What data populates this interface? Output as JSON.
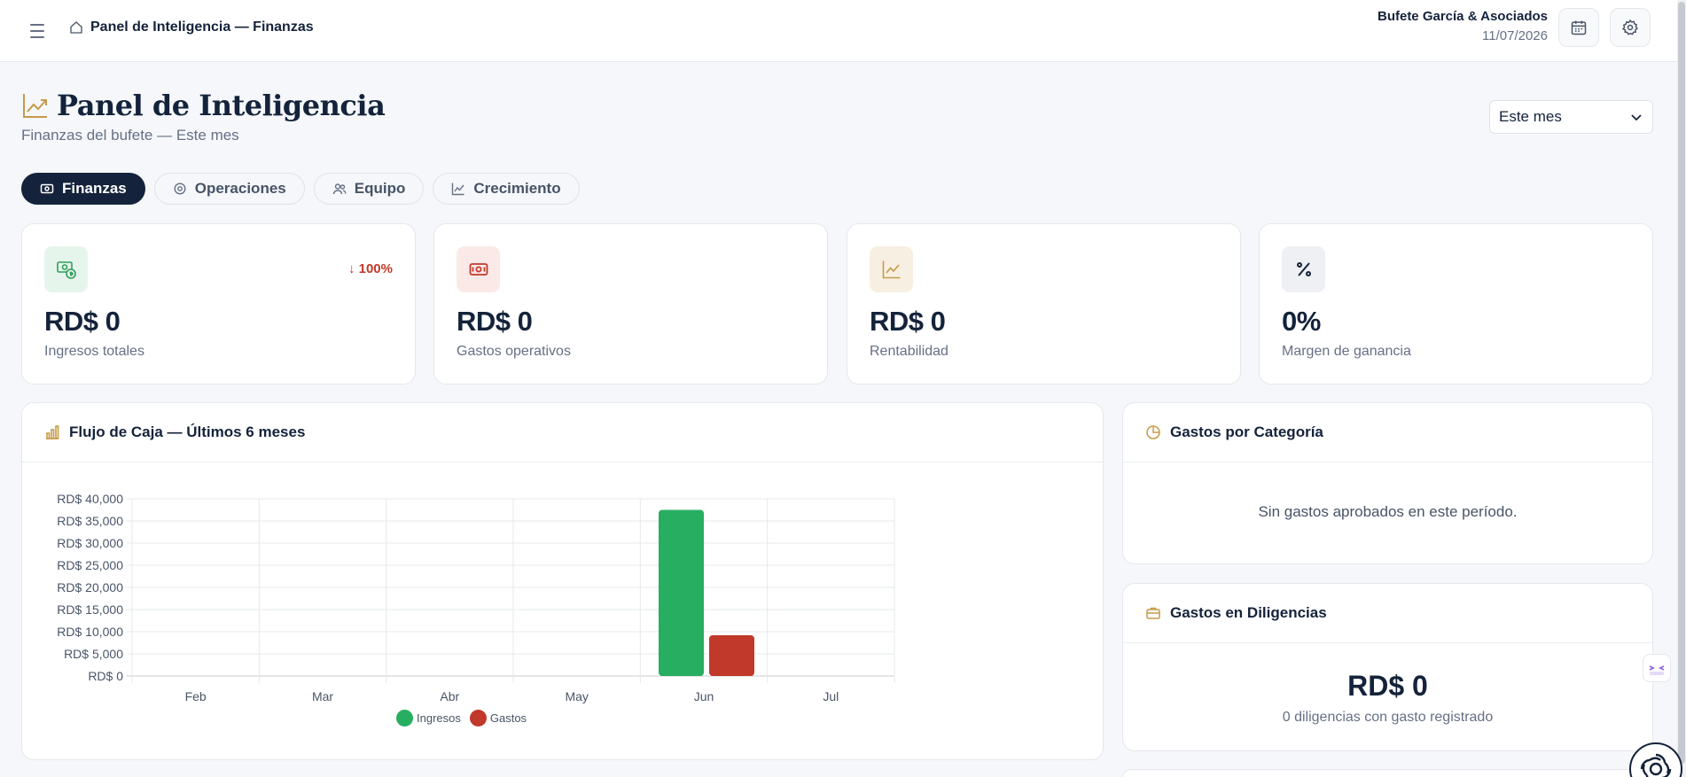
{
  "header": {
    "breadcrumb": "Panel de Inteligencia — Finanzas",
    "firm_name": "Bufete García & Asociados",
    "date": "11/07/2026"
  },
  "page": {
    "title": "Panel de Inteligencia",
    "subtitle": "Finanzas del bufete — Este mes",
    "period": "Este mes"
  },
  "tabs": [
    {
      "label": "Finanzas",
      "icon": "cash-icon",
      "active": true
    },
    {
      "label": "Operaciones",
      "icon": "gear-icon",
      "active": false
    },
    {
      "label": "Equipo",
      "icon": "users-icon",
      "active": false
    },
    {
      "label": "Crecimiento",
      "icon": "trend-icon",
      "active": false
    }
  ],
  "kpis": [
    {
      "value": "RD$ 0",
      "label": "Ingresos totales",
      "trend": "↓ 100%",
      "icon": "money-icon",
      "color": "#2e9e5b",
      "bg": "#e6f5ec"
    },
    {
      "value": "RD$ 0",
      "label": "Gastos operativos",
      "trend": "",
      "icon": "cash-icon",
      "color": "#c0392b",
      "bg": "#fbe9e8"
    },
    {
      "value": "RD$ 0",
      "label": "Rentabilidad",
      "trend": "",
      "icon": "chart-line-icon",
      "color": "#c79a49",
      "bg": "#f7f0e2"
    },
    {
      "value": "0%",
      "label": "Margen de ganancia",
      "trend": "",
      "icon": "percent-icon",
      "color": "#14233b",
      "bg": "#eef0f3"
    }
  ],
  "cashflow": {
    "title": "Flujo de Caja — Últimos 6 meses"
  },
  "chart_data": {
    "type": "bar",
    "categories": [
      "Feb",
      "Mar",
      "Abr",
      "May",
      "Jun",
      "Jul"
    ],
    "series": [
      {
        "name": "Ingresos",
        "color": "#27ae60",
        "values": [
          0,
          0,
          0,
          0,
          37500,
          0
        ]
      },
      {
        "name": "Gastos",
        "color": "#c0392b",
        "values": [
          0,
          0,
          0,
          0,
          9200,
          0
        ]
      }
    ],
    "ylim": [
      0,
      40000
    ],
    "yticks": [
      "RD$ 40,000",
      "RD$ 35,000",
      "RD$ 30,000",
      "RD$ 25,000",
      "RD$ 20,000",
      "RD$ 15,000",
      "RD$ 10,000",
      "RD$ 5,000",
      "RD$ 0"
    ],
    "grid": true,
    "legend": "bottom"
  },
  "categories_panel": {
    "title": "Gastos por Categoría",
    "empty_message": "Sin gastos aprobados en este período."
  },
  "diligencias_panel": {
    "title": "Gastos en Diligencias",
    "value": "RD$ 0",
    "subtitle": "0 diligencias con gasto registrado"
  }
}
